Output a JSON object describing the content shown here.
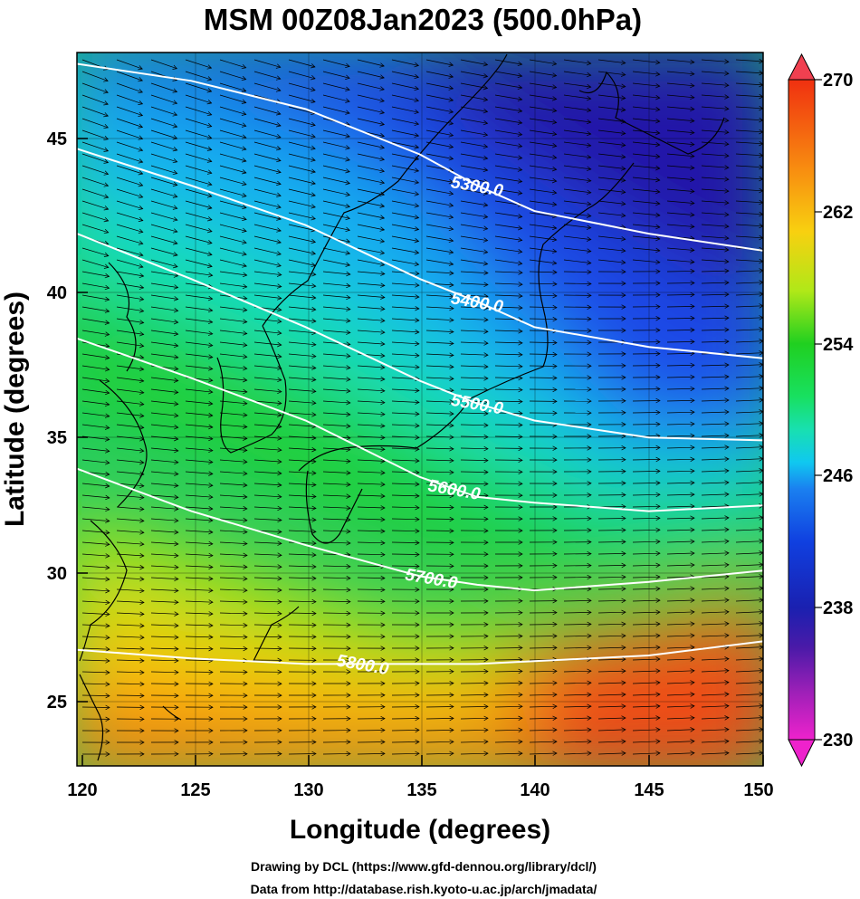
{
  "chart_data": {
    "type": "heatmap",
    "title": "MSM 00Z08Jan2023 (500.0hPa)",
    "xlabel": "Longitude (degrees)",
    "ylabel": "Latitude  (degrees)",
    "xlim": [
      120,
      150
    ],
    "ylim": [
      22.4,
      47.6
    ],
    "x_ticks": [
      "120",
      "125",
      "130",
      "135",
      "140",
      "145",
      "150"
    ],
    "y_ticks": [
      "25",
      "30",
      "35",
      "40",
      "45"
    ],
    "colorbar": {
      "range": [
        230,
        270
      ],
      "ticks": [
        "230",
        "238",
        "246",
        "254",
        "262",
        "270"
      ],
      "colors": [
        "#ee22cc",
        "#8a1fb0",
        "#2a1a9c",
        "#1030d8",
        "#1a70f0",
        "#10c8f0",
        "#18e0a0",
        "#20d020",
        "#b8e818",
        "#f8d010",
        "#f88010",
        "#f03010"
      ]
    },
    "contours": [
      {
        "label": "5300.0",
        "lon": [
          120,
          125,
          130,
          135,
          137.5,
          140,
          145,
          150
        ],
        "lat": [
          47.2,
          46.6,
          45.6,
          44.0,
          42.9,
          42.0,
          41.2,
          40.6
        ]
      },
      {
        "label": "5400.0",
        "lon": [
          120,
          125,
          130,
          135,
          137.5,
          140,
          145,
          150
        ],
        "lat": [
          44.2,
          42.9,
          41.5,
          39.6,
          38.8,
          37.9,
          37.2,
          36.8
        ]
      },
      {
        "label": "5500.0",
        "lon": [
          120,
          125,
          130,
          135,
          137.5,
          140,
          145,
          150
        ],
        "lat": [
          41.2,
          39.6,
          37.9,
          36.0,
          35.2,
          34.6,
          34.0,
          33.9
        ]
      },
      {
        "label": "5600.0",
        "lon": [
          120,
          125,
          130,
          135,
          137.5,
          140,
          145,
          150
        ],
        "lat": [
          37.5,
          36.1,
          34.6,
          32.6,
          31.9,
          31.7,
          31.4,
          31.6
        ]
      },
      {
        "label": "5700.0",
        "lon": [
          120,
          125,
          130,
          135,
          137.5,
          140,
          145,
          150
        ],
        "lat": [
          32.9,
          31.4,
          30.2,
          29.1,
          28.8,
          28.6,
          28.9,
          29.3
        ]
      },
      {
        "label": "5800.0",
        "lon": [
          120,
          125,
          130,
          135,
          137.5,
          140,
          145,
          150
        ],
        "lat": [
          26.5,
          26.2,
          26.0,
          26.0,
          26.0,
          26.1,
          26.3,
          26.8
        ]
      }
    ]
  },
  "credits": {
    "line1": "Drawing by DCL (https://www.gfd-dennou.org/library/dcl/)",
    "line2": "Data from http://database.rish.kyoto-u.ac.jp/arch/jmadata/"
  }
}
